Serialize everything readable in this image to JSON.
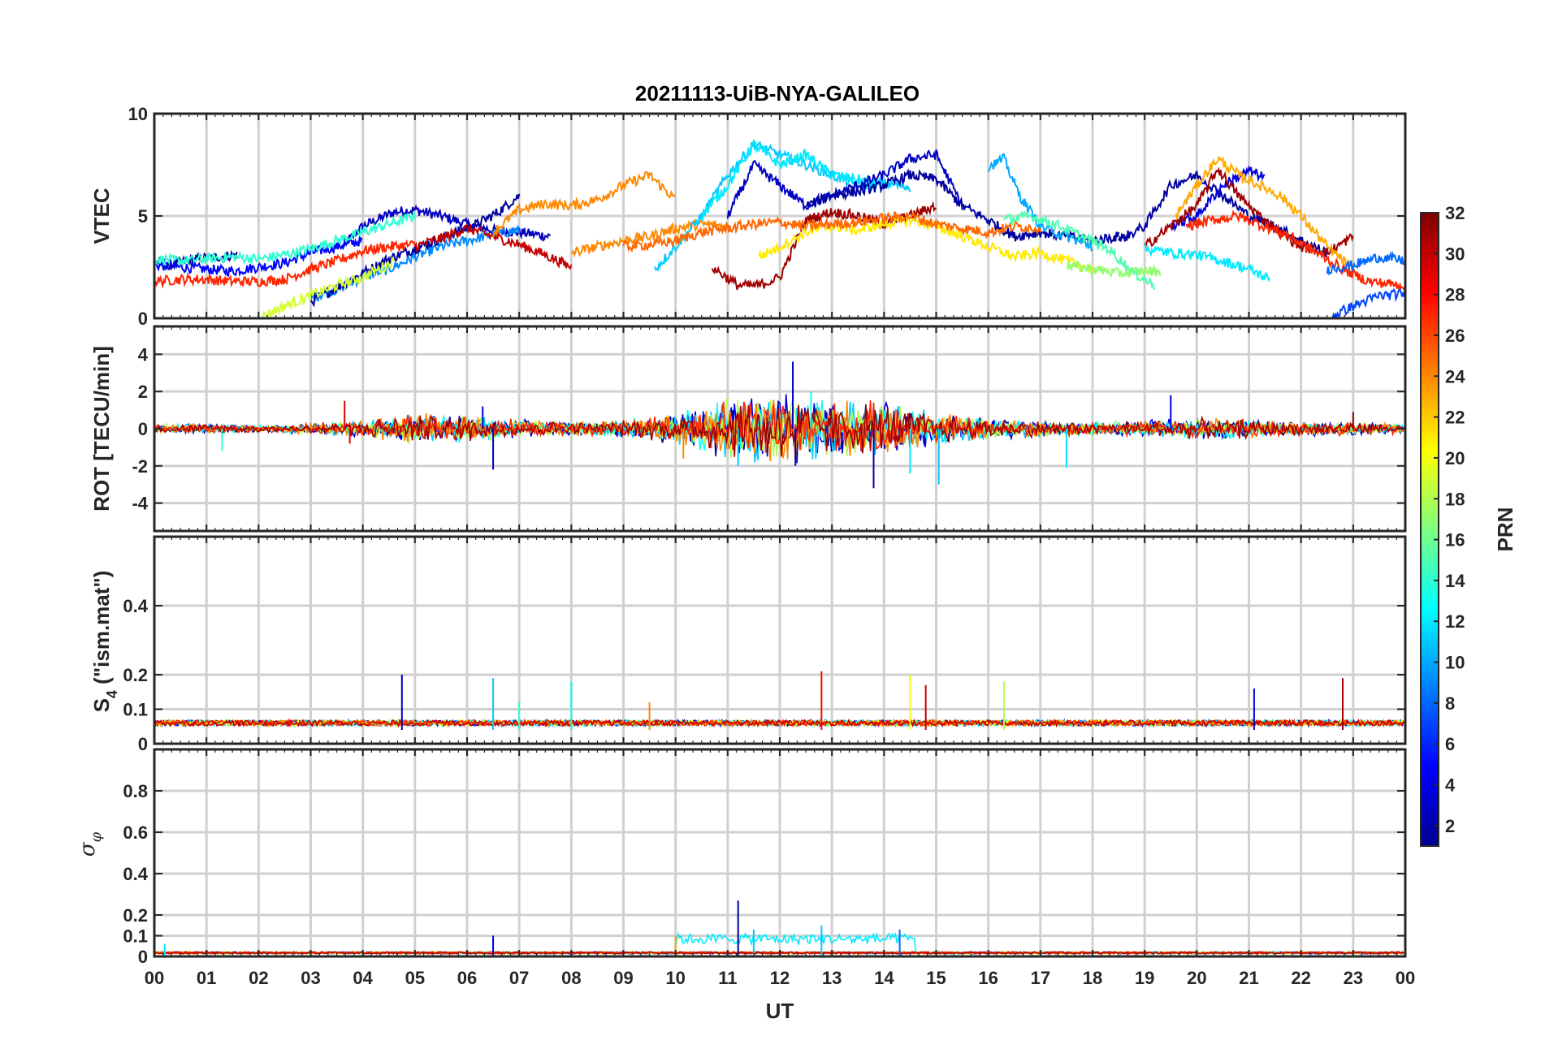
{
  "chart_data": {
    "type": "line",
    "title": "20211113-UiB-NYA-GALILEO",
    "xlabel": "UT",
    "x_tick_labels": [
      "00",
      "01",
      "02",
      "03",
      "04",
      "05",
      "06",
      "07",
      "08",
      "09",
      "10",
      "11",
      "12",
      "13",
      "14",
      "15",
      "16",
      "17",
      "18",
      "19",
      "20",
      "21",
      "22",
      "23",
      "00"
    ],
    "x_range_hours": [
      0,
      24
    ],
    "grid": true,
    "colorbar": {
      "label": "PRN",
      "colormap": "jet",
      "range": [
        1,
        32
      ],
      "tick_labels": [
        "2",
        "4",
        "6",
        "8",
        "10",
        "12",
        "14",
        "16",
        "18",
        "20",
        "22",
        "24",
        "26",
        "28",
        "30",
        "32"
      ],
      "tick_values": [
        2,
        4,
        6,
        8,
        10,
        12,
        14,
        16,
        18,
        20,
        22,
        24,
        26,
        28,
        30,
        32
      ]
    },
    "panels": [
      {
        "id": "vtec",
        "ylabel": "VTEC",
        "ylim": [
          0,
          10
        ],
        "y_tick_labels": [
          "0",
          "5",
          "10"
        ],
        "y_tick_values": [
          0,
          5,
          10
        ],
        "series": [
          {
            "prn": 3,
            "x": [
              3.6,
              4.0,
              4.6,
              5.0,
              5.5,
              6.0,
              6.5,
              7.0,
              7.6
            ],
            "y": [
              3.5,
              4.5,
              5.2,
              5.3,
              5.0,
              4.6,
              4.3,
              4.2,
              4.0
            ]
          },
          {
            "prn": 2,
            "x": [
              0,
              0.3,
              0.8,
              1.2,
              1.6
            ],
            "y": [
              2.8,
              2.6,
              2.9,
              3.0,
              3.1
            ]
          },
          {
            "prn": 5,
            "x": [
              0,
              0.5,
              1.0,
              1.5,
              2.0,
              2.5,
              3.0,
              3.5,
              4.0
            ],
            "y": [
              2.6,
              2.5,
              2.4,
              2.3,
              2.5,
              2.7,
              3.2,
              3.5,
              3.8
            ]
          },
          {
            "prn": 9,
            "x": [
              3.0,
              3.5,
              4.0,
              4.5,
              5.0,
              5.5,
              6.0,
              6.5,
              7.0
            ],
            "y": [
              1.0,
              1.4,
              2.0,
              2.4,
              3.0,
              3.5,
              3.8,
              4.1,
              4.3
            ]
          },
          {
            "prn": 2,
            "x": [
              3.0,
              3.5,
              4.0,
              4.5,
              5.0,
              5.4,
              5.8,
              6.2,
              6.6,
              7.0
            ],
            "y": [
              0.8,
              1.5,
              2.2,
              2.9,
              3.4,
              3.8,
              4.2,
              4.6,
              5.2,
              6.0
            ]
          },
          {
            "prn": 14,
            "x": [
              0,
              0.5,
              1.0,
              1.5,
              2.0,
              2.5,
              3.0,
              3.5,
              4.0,
              4.5,
              5.0
            ],
            "y": [
              2.9,
              2.8,
              2.9,
              3.0,
              2.9,
              3.1,
              3.4,
              3.8,
              4.2,
              4.6,
              5.0
            ]
          },
          {
            "prn": 27,
            "x": [
              0,
              0.5,
              1.0,
              1.5,
              2.0,
              2.5,
              3.0,
              3.5,
              4.0,
              4.5,
              5.0
            ],
            "y": [
              1.8,
              1.9,
              1.9,
              1.8,
              1.8,
              1.9,
              2.4,
              2.8,
              3.3,
              3.5,
              3.6
            ]
          },
          {
            "prn": 30,
            "x": [
              5.0,
              5.5,
              6.0,
              6.5,
              7.0,
              7.5,
              8.0
            ],
            "y": [
              3.5,
              3.9,
              4.4,
              4.0,
              3.6,
              3.1,
              2.5
            ]
          },
          {
            "prn": 19,
            "x": [
              2.0,
              2.5,
              3.0,
              3.5,
              4.0,
              4.6
            ],
            "y": [
              0.0,
              0.6,
              1.1,
              1.6,
              2.0,
              2.8
            ]
          },
          {
            "prn": 24,
            "x": [
              6.5,
              7.0,
              7.5,
              8.0,
              8.5,
              9.0,
              9.5,
              10.0
            ],
            "y": [
              4.2,
              5.3,
              5.6,
              5.5,
              5.8,
              6.5,
              7.0,
              5.8
            ]
          },
          {
            "prn": 24,
            "x": [
              8.0,
              8.5,
              9.0,
              9.5,
              10.0,
              10.5,
              11.0
            ],
            "y": [
              3.2,
              3.5,
              3.8,
              4.0,
              4.4,
              4.6,
              4.5
            ]
          },
          {
            "prn": 11,
            "x": [
              9.6,
              10.0,
              10.5,
              11.0,
              11.5,
              12.0,
              12.5,
              13.0,
              13.5,
              14.0,
              14.5
            ],
            "y": [
              2.4,
              3.5,
              5.0,
              7.0,
              8.5,
              8.0,
              7.5,
              7.0,
              6.5,
              6.6,
              6.4
            ]
          },
          {
            "prn": 12,
            "x": [
              10.5,
              11.0,
              11.5,
              12.0,
              12.5,
              13.0,
              13.5,
              14.0
            ],
            "y": [
              5.0,
              6.5,
              8.5,
              7.5,
              8.0,
              7.0,
              6.8,
              6.5
            ]
          },
          {
            "prn": 3,
            "x": [
              11.0,
              11.5,
              12.0,
              12.5,
              13.0,
              13.5,
              14.0,
              14.5,
              15.0,
              15.5
            ],
            "y": [
              5.0,
              7.5,
              6.5,
              5.5,
              6.0,
              6.5,
              7.0,
              7.8,
              8.0,
              5.5
            ]
          },
          {
            "prn": 2,
            "x": [
              12.5,
              13.0,
              13.5,
              14.0,
              14.5,
              15.0,
              15.5,
              16.0,
              16.5,
              17.0,
              17.5,
              18.0,
              18.5
            ],
            "y": [
              5.5,
              6.0,
              6.2,
              6.5,
              7.0,
              6.8,
              5.5,
              4.8,
              4.0,
              4.2,
              4.0,
              3.8,
              4.0
            ]
          },
          {
            "prn": 31,
            "x": [
              10.7,
              11.2,
              11.6,
              12.0,
              12.5,
              13.0,
              13.5,
              14.0,
              14.5,
              15.0
            ],
            "y": [
              2.5,
              1.6,
              1.6,
              2.0,
              4.8,
              5.2,
              5.0,
              4.6,
              5.0,
              5.5
            ]
          },
          {
            "prn": 21,
            "x": [
              11.6,
              12.0,
              12.5,
              13.0,
              13.5,
              14.0,
              14.5,
              15.0,
              15.5,
              16.0,
              16.5,
              17.0,
              17.5,
              18.0
            ],
            "y": [
              3.0,
              3.5,
              4.2,
              4.5,
              4.3,
              4.6,
              4.8,
              4.5,
              4.0,
              3.5,
              3.0,
              3.2,
              2.8,
              2.4
            ]
          },
          {
            "prn": 25,
            "x": [
              9.0,
              9.5,
              10.0,
              10.5,
              11.0,
              11.5,
              12.0,
              12.5,
              13.0,
              13.5,
              14.0,
              14.5,
              15.0,
              15.5,
              16.0,
              16.5,
              17.0
            ],
            "y": [
              3.5,
              3.6,
              3.8,
              4.2,
              4.4,
              4.6,
              4.7,
              4.5,
              4.6,
              4.7,
              4.9,
              5.0,
              4.6,
              4.4,
              4.2,
              4.5,
              4.4
            ]
          },
          {
            "prn": 10,
            "x": [
              16.0,
              16.3,
              16.6,
              17.0,
              17.5,
              18.0
            ],
            "y": [
              7.4,
              7.8,
              6.0,
              4.5,
              4.0,
              3.5
            ]
          },
          {
            "prn": 15,
            "x": [
              16.3,
              16.8,
              17.3,
              17.8,
              18.3,
              18.8,
              19.2
            ],
            "y": [
              4.8,
              5.0,
              4.6,
              4.0,
              3.4,
              2.2,
              1.6
            ]
          },
          {
            "prn": 17,
            "x": [
              17.5,
              18.0,
              18.5,
              19.0,
              19.3
            ],
            "y": [
              2.6,
              2.4,
              2.2,
              2.3,
              2.3
            ]
          },
          {
            "prn": 2,
            "x": [
              18.5,
              19.0,
              19.5,
              20.0,
              20.5,
              21.0,
              21.5,
              22.0,
              22.5
            ],
            "y": [
              3.8,
              4.5,
              6.5,
              7.0,
              6.0,
              5.0,
              4.5,
              3.8,
              3.2
            ]
          },
          {
            "prn": 4,
            "x": [
              19.5,
              20.0,
              20.5,
              21.0,
              21.3
            ],
            "y": [
              4.5,
              5.0,
              6.5,
              7.2,
              6.9
            ]
          },
          {
            "prn": 31,
            "x": [
              19.0,
              19.5,
              20.0,
              20.4,
              20.8,
              21.2,
              21.6,
              22.0,
              22.5,
              23.0
            ],
            "y": [
              3.5,
              4.5,
              5.5,
              7.3,
              6.0,
              5.0,
              4.2,
              3.5,
              3.2,
              4.0
            ]
          },
          {
            "prn": 23,
            "x": [
              19.6,
              20.0,
              20.4,
              20.8,
              21.2,
              21.6,
              22.0,
              22.5,
              23.0
            ],
            "y": [
              5.0,
              6.5,
              7.8,
              7.0,
              6.5,
              6.0,
              5.0,
              3.5,
              2.4
            ]
          },
          {
            "prn": 27,
            "x": [
              19.8,
              20.3,
              20.8,
              21.3,
              21.8,
              22.3,
              22.8,
              23.3,
              24.0
            ],
            "y": [
              4.5,
              4.8,
              5.0,
              4.5,
              4.0,
              3.2,
              2.4,
              1.8,
              1.6
            ]
          },
          {
            "prn": 12,
            "x": [
              19.0,
              19.5,
              20.0,
              20.5,
              21.0,
              21.4
            ],
            "y": [
              3.4,
              3.2,
              3.1,
              2.8,
              2.4,
              1.9
            ]
          },
          {
            "prn": 7,
            "x": [
              22.6,
              23.0,
              23.5,
              24.0
            ],
            "y": [
              0.1,
              0.6,
              1.1,
              1.2
            ]
          },
          {
            "prn": 8,
            "x": [
              22.5,
              23.0,
              23.5,
              24.0
            ],
            "y": [
              2.4,
              2.6,
              3.0,
              2.8
            ]
          }
        ]
      },
      {
        "id": "rot",
        "ylabel": "ROT [TECU/min]",
        "ylim": [
          -5.5,
          5.5
        ],
        "y_tick_labels": [
          "4",
          "2",
          "0",
          "-2",
          "-4"
        ],
        "y_tick_values": [
          4,
          2,
          0,
          -2,
          -4
        ],
        "noise_envelope": {
          "hours": [
            0,
            1,
            2,
            3,
            4,
            5,
            6,
            7,
            8,
            9,
            10,
            11,
            12,
            13,
            14,
            15,
            16,
            17,
            18,
            19,
            20,
            21,
            22,
            23,
            24
          ],
          "amplitude": [
            0.25,
            0.3,
            0.2,
            0.3,
            0.5,
            0.9,
            0.8,
            0.5,
            0.4,
            0.5,
            0.9,
            1.8,
            2.2,
            1.6,
            1.6,
            1.0,
            0.6,
            0.5,
            0.4,
            0.5,
            0.6,
            0.6,
            0.4,
            0.4,
            0.3
          ]
        },
        "spikes": [
          {
            "x": 1.3,
            "y": -1.2,
            "prn": 14
          },
          {
            "x": 3.65,
            "y": 1.5,
            "prn": 29
          },
          {
            "x": 3.75,
            "y": -0.8,
            "prn": 29
          },
          {
            "x": 6.5,
            "y": -2.2,
            "prn": 3
          },
          {
            "x": 6.3,
            "y": 1.2,
            "prn": 4
          },
          {
            "x": 10.15,
            "y": -1.6,
            "prn": 24
          },
          {
            "x": 12.25,
            "y": 3.6,
            "prn": 3
          },
          {
            "x": 12.3,
            "y": -2.0,
            "prn": 3
          },
          {
            "x": 11.2,
            "y": -2.0,
            "prn": 11
          },
          {
            "x": 12.6,
            "y": 2.0,
            "prn": 13
          },
          {
            "x": 13.8,
            "y": -3.2,
            "prn": 2
          },
          {
            "x": 14.5,
            "y": -2.4,
            "prn": 12
          },
          {
            "x": 15.05,
            "y": -3.0,
            "prn": 11
          },
          {
            "x": 17.5,
            "y": -2.1,
            "prn": 12
          },
          {
            "x": 19.5,
            "y": 1.8,
            "prn": 4
          },
          {
            "x": 23.0,
            "y": 0.9,
            "prn": 31
          }
        ]
      },
      {
        "id": "s4",
        "ylabel": "S4 (\"ism.mat\")",
        "ylabel_main": "S",
        "ylabel_sub": "4",
        "ylabel_rest": " (\"ism.mat\")",
        "ylim": [
          0,
          0.6
        ],
        "y_tick_labels": [
          "0",
          "0.1",
          "0.2",
          "0.4"
        ],
        "y_tick_values": [
          0,
          0.1,
          0.2,
          0.4
        ],
        "baseline": [
          0.04,
          0.08
        ],
        "spikes": [
          {
            "x": 4.75,
            "y": 0.2,
            "prn": 3
          },
          {
            "x": 6.5,
            "y": 0.19,
            "prn": 11
          },
          {
            "x": 7.0,
            "y": 0.12,
            "prn": 14
          },
          {
            "x": 8.0,
            "y": 0.18,
            "prn": 13
          },
          {
            "x": 9.5,
            "y": 0.12,
            "prn": 24
          },
          {
            "x": 12.8,
            "y": 0.21,
            "prn": 28
          },
          {
            "x": 14.5,
            "y": 0.2,
            "prn": 20
          },
          {
            "x": 14.8,
            "y": 0.17,
            "prn": 30
          },
          {
            "x": 16.3,
            "y": 0.18,
            "prn": 18
          },
          {
            "x": 21.1,
            "y": 0.16,
            "prn": 4
          },
          {
            "x": 22.8,
            "y": 0.19,
            "prn": 31
          }
        ]
      },
      {
        "id": "sigma",
        "ylabel": "σφ",
        "ylabel_main": "σ",
        "ylabel_sub": "φ",
        "ylim": [
          0,
          1.0
        ],
        "y_tick_labels": [
          "0",
          "0.1",
          "0.2",
          "0.4",
          "0.6",
          "0.8"
        ],
        "y_tick_values": [
          0,
          0.1,
          0.2,
          0.4,
          0.6,
          0.8
        ],
        "baseline": [
          0.005,
          0.03
        ],
        "spikes": [
          {
            "x": 0.2,
            "y": 0.06,
            "prn": 12
          },
          {
            "x": 6.5,
            "y": 0.1,
            "prn": 4
          },
          {
            "x": 10.0,
            "y": 0.1,
            "prn": 23
          },
          {
            "x": 11.2,
            "y": 0.27,
            "prn": 2
          },
          {
            "x": 11.5,
            "y": 0.13,
            "prn": 11
          },
          {
            "x": 12.8,
            "y": 0.15,
            "prn": 11
          },
          {
            "x": 14.3,
            "y": 0.13,
            "prn": 8
          }
        ],
        "band": {
          "start": 10.0,
          "end": 14.6,
          "level": 0.1,
          "prn": 11
        }
      }
    ]
  }
}
